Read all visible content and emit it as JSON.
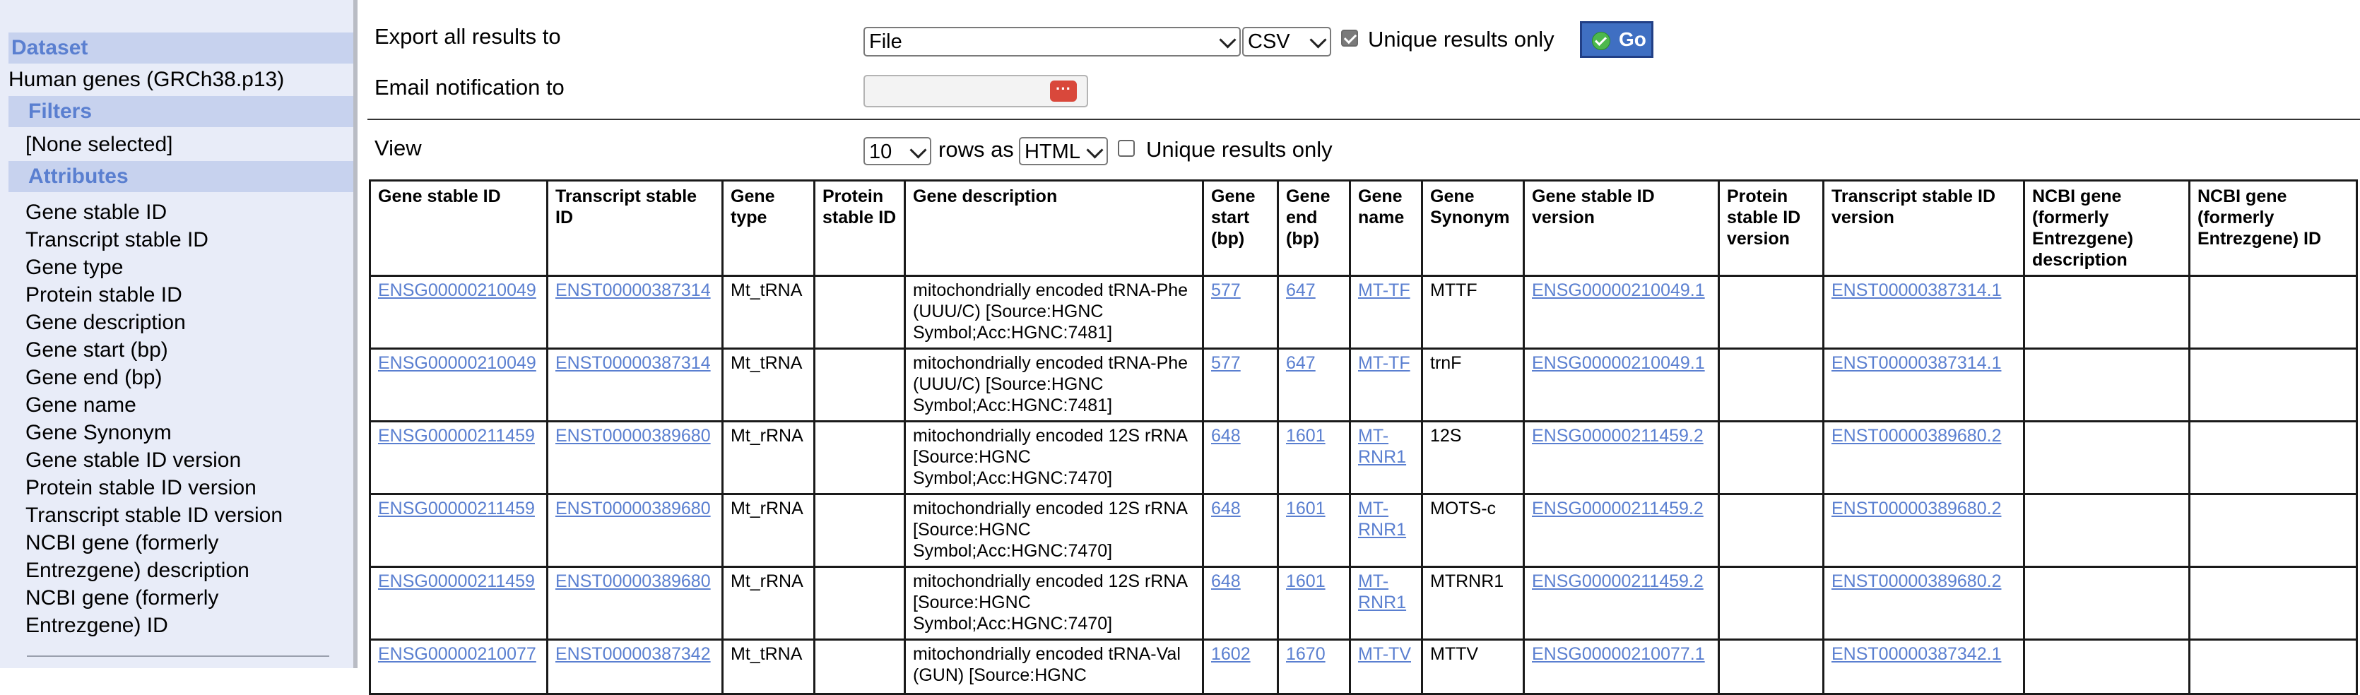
{
  "sidebar": {
    "dataset_header": "Dataset",
    "dataset_value": "Human genes (GRCh38.p13)",
    "filters_header": "Filters",
    "filters_value": "[None selected]",
    "attributes_header": "Attributes",
    "attributes": [
      "Gene stable ID",
      "Transcript stable ID",
      "Gene type",
      "Protein stable ID",
      "Gene description",
      "Gene start (bp)",
      "Gene end (bp)",
      "Gene name",
      "Gene Synonym",
      "Gene stable ID version",
      "Protein stable ID version",
      "Transcript stable ID version",
      "NCBI gene (formerly",
      "Entrezgene) description",
      "NCBI gene (formerly",
      "Entrezgene) ID"
    ]
  },
  "export": {
    "label": "Export  all results to",
    "destination": "File",
    "format": "CSV",
    "unique_label": "Unique results only",
    "unique_checked": true,
    "go_label": "Go"
  },
  "email": {
    "label": "Email notification to",
    "value": "",
    "button_glyph": "···"
  },
  "view": {
    "label": "View",
    "rows": "10",
    "rows_as_label": "rows as",
    "format": "HTML",
    "unique_label": "Unique results only",
    "unique_checked": false
  },
  "table": {
    "columns": [
      "Gene stable ID",
      "Transcript stable ID",
      "Gene type",
      "Protein stable ID",
      "Gene description",
      "Gene start (bp)",
      "Gene end (bp)",
      "Gene name",
      "Gene Synonym",
      "Gene stable ID version",
      "Protein stable ID version",
      "Transcript stable ID version",
      "NCBI gene (formerly Entrezgene) description",
      "NCBI gene (formerly Entrezgene) ID"
    ],
    "rows": [
      [
        "ENSG00000210049",
        "ENST00000387314",
        "Mt_tRNA",
        "",
        "mitochondrially encoded tRNA-Phe (UUU/C) [Source:HGNC Symbol;Acc:HGNC:7481]",
        "577",
        "647",
        "MT-TF",
        "MTTF",
        "ENSG00000210049.1",
        "",
        "ENST00000387314.1",
        "",
        ""
      ],
      [
        "ENSG00000210049",
        "ENST00000387314",
        "Mt_tRNA",
        "",
        "mitochondrially encoded tRNA-Phe (UUU/C) [Source:HGNC Symbol;Acc:HGNC:7481]",
        "577",
        "647",
        "MT-TF",
        "trnF",
        "ENSG00000210049.1",
        "",
        "ENST00000387314.1",
        "",
        ""
      ],
      [
        "ENSG00000211459",
        "ENST00000389680",
        "Mt_rRNA",
        "",
        "mitochondrially encoded 12S rRNA [Source:HGNC Symbol;Acc:HGNC:7470]",
        "648",
        "1601",
        "MT-RNR1",
        "12S",
        "ENSG00000211459.2",
        "",
        "ENST00000389680.2",
        "",
        ""
      ],
      [
        "ENSG00000211459",
        "ENST00000389680",
        "Mt_rRNA",
        "",
        "mitochondrially encoded 12S rRNA [Source:HGNC Symbol;Acc:HGNC:7470]",
        "648",
        "1601",
        "MT-RNR1",
        "MOTS-c",
        "ENSG00000211459.2",
        "",
        "ENST00000389680.2",
        "",
        ""
      ],
      [
        "ENSG00000211459",
        "ENST00000389680",
        "Mt_rRNA",
        "",
        "mitochondrially encoded 12S rRNA [Source:HGNC Symbol;Acc:HGNC:7470]",
        "648",
        "1601",
        "MT-RNR1",
        "MTRNR1",
        "ENSG00000211459.2",
        "",
        "ENST00000389680.2",
        "",
        ""
      ],
      [
        "ENSG00000210077",
        "ENST00000387342",
        "Mt_tRNA",
        "",
        "mitochondrially encoded tRNA-Val (GUN) [Source:HGNC",
        "1602",
        "1670",
        "MT-TV",
        "MTTV",
        "ENSG00000210077.1",
        "",
        "ENST00000387342.1",
        "",
        ""
      ]
    ],
    "link_columns": [
      0,
      1,
      5,
      6,
      7,
      9,
      11
    ]
  }
}
